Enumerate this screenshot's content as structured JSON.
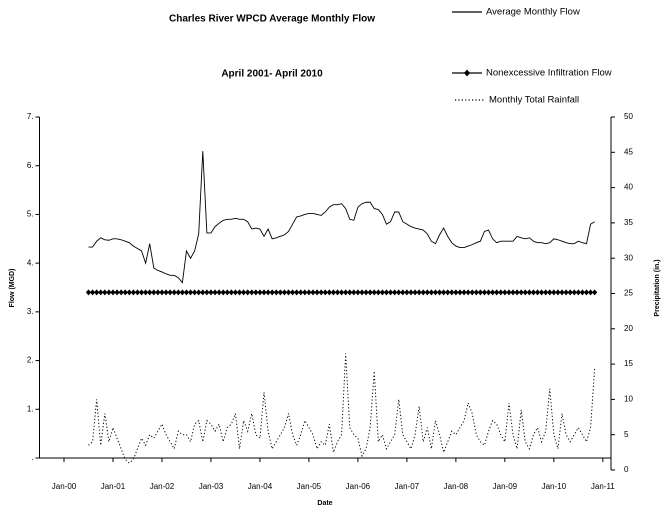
{
  "chart_data": {
    "type": "line",
    "title": "Charles River WPCD Average Monthly Flow",
    "subtitle": "April 2001- April 2010",
    "x_label": "Date",
    "y_label": "Flow (MGD)",
    "y2_label": "Precipitation (in.)",
    "x": [
      "2000-07",
      "2000-08",
      "2000-09",
      "2000-10",
      "2000-11",
      "2000-12",
      "2001-01",
      "2001-02",
      "2001-03",
      "2001-04",
      "2001-05",
      "2001-06",
      "2001-07",
      "2001-08",
      "2001-09",
      "2001-10",
      "2001-11",
      "2001-12",
      "2002-01",
      "2002-02",
      "2002-03",
      "2002-04",
      "2002-05",
      "2002-06",
      "2002-07",
      "2002-08",
      "2002-09",
      "2002-10",
      "2002-11",
      "2002-12",
      "2003-01",
      "2003-02",
      "2003-03",
      "2003-04",
      "2003-05",
      "2003-06",
      "2003-07",
      "2003-08",
      "2003-09",
      "2003-10",
      "2003-11",
      "2003-12",
      "2004-01",
      "2004-02",
      "2004-03",
      "2004-04",
      "2004-05",
      "2004-06",
      "2004-07",
      "2004-08",
      "2004-09",
      "2004-10",
      "2004-11",
      "2004-12",
      "2005-01",
      "2005-02",
      "2005-03",
      "2005-04",
      "2005-05",
      "2005-06",
      "2005-07",
      "2005-08",
      "2005-09",
      "2005-10",
      "2005-11",
      "2005-12",
      "2006-01",
      "2006-02",
      "2006-03",
      "2006-04",
      "2006-05",
      "2006-06",
      "2006-07",
      "2006-08",
      "2006-09",
      "2006-10",
      "2006-11",
      "2006-12",
      "2007-01",
      "2007-02",
      "2007-03",
      "2007-04",
      "2007-05",
      "2007-06",
      "2007-07",
      "2007-08",
      "2007-09",
      "2007-10",
      "2007-11",
      "2007-12",
      "2008-01",
      "2008-02",
      "2008-03",
      "2008-04",
      "2008-05",
      "2008-06",
      "2008-07",
      "2008-08",
      "2008-09",
      "2008-10",
      "2008-11",
      "2008-12",
      "2009-01",
      "2009-02",
      "2009-03",
      "2009-04",
      "2009-05",
      "2009-06",
      "2009-07",
      "2009-08",
      "2009-09",
      "2009-10",
      "2009-11",
      "2009-12",
      "2010-01",
      "2010-02",
      "2010-03",
      "2010-04",
      "2010-05",
      "2010-06",
      "2010-07",
      "2010-08",
      "2010-09",
      "2010-10",
      "2010-11"
    ],
    "series": [
      {
        "name": "Average Monthly Flow",
        "color": "#000000",
        "style": "solid",
        "values": [
          4.33,
          4.33,
          4.45,
          4.52,
          4.48,
          4.47,
          4.5,
          4.5,
          4.48,
          4.45,
          4.42,
          4.35,
          4.3,
          4.25,
          4.0,
          4.4,
          3.9,
          3.85,
          3.82,
          3.78,
          3.75,
          3.75,
          3.7,
          3.6,
          4.25,
          4.1,
          4.25,
          4.6,
          6.3,
          4.62,
          4.62,
          4.75,
          4.82,
          4.88,
          4.9,
          4.9,
          4.92,
          4.9,
          4.9,
          4.85,
          4.7,
          4.72,
          4.7,
          4.55,
          4.7,
          4.5,
          4.52,
          4.55,
          4.58,
          4.65,
          4.8,
          4.95,
          4.97,
          5.0,
          5.02,
          5.02,
          5.0,
          4.98,
          5.05,
          5.15,
          5.2,
          5.2,
          5.22,
          5.12,
          4.9,
          4.88,
          5.15,
          5.22,
          5.25,
          5.25,
          5.12,
          5.1,
          5.0,
          4.8,
          4.85,
          5.05,
          5.05,
          4.85,
          4.8,
          4.75,
          4.72,
          4.7,
          4.68,
          4.6,
          4.45,
          4.4,
          4.58,
          4.72,
          4.55,
          4.42,
          4.35,
          4.32,
          4.32,
          4.35,
          4.38,
          4.42,
          4.45,
          4.65,
          4.68,
          4.5,
          4.42,
          4.45,
          4.45,
          4.45,
          4.45,
          4.55,
          4.52,
          4.5,
          4.52,
          4.45,
          4.42,
          4.42,
          4.4,
          4.42,
          4.5,
          4.48,
          4.45,
          4.42,
          4.4,
          4.4,
          4.45,
          4.42,
          4.4,
          4.8,
          4.85
        ]
      },
      {
        "name": "Nonexcessive Infiltration Flow",
        "color": "#000000",
        "style": "solid",
        "marker": "diamond",
        "values": [
          3.4,
          3.4,
          3.4,
          3.4,
          3.4,
          3.4,
          3.4,
          3.4,
          3.4,
          3.4,
          3.4,
          3.4,
          3.4,
          3.4,
          3.4,
          3.4,
          3.4,
          3.4,
          3.4,
          3.4,
          3.4,
          3.4,
          3.4,
          3.4,
          3.4,
          3.4,
          3.4,
          3.4,
          3.4,
          3.4,
          3.4,
          3.4,
          3.4,
          3.4,
          3.4,
          3.4,
          3.4,
          3.4,
          3.4,
          3.4,
          3.4,
          3.4,
          3.4,
          3.4,
          3.4,
          3.4,
          3.4,
          3.4,
          3.4,
          3.4,
          3.4,
          3.4,
          3.4,
          3.4,
          3.4,
          3.4,
          3.4,
          3.4,
          3.4,
          3.4,
          3.4,
          3.4,
          3.4,
          3.4,
          3.4,
          3.4,
          3.4,
          3.4,
          3.4,
          3.4,
          3.4,
          3.4,
          3.4,
          3.4,
          3.4,
          3.4,
          3.4,
          3.4,
          3.4,
          3.4,
          3.4,
          3.4,
          3.4,
          3.4,
          3.4,
          3.4,
          3.4,
          3.4,
          3.4,
          3.4,
          3.4,
          3.4,
          3.4,
          3.4,
          3.4,
          3.4,
          3.4,
          3.4,
          3.4,
          3.4,
          3.4,
          3.4,
          3.4,
          3.4,
          3.4,
          3.4,
          3.4,
          3.4,
          3.4,
          3.4,
          3.4,
          3.4,
          3.4,
          3.4,
          3.4,
          3.4,
          3.4,
          3.4,
          3.4,
          3.4,
          3.4,
          3.4,
          3.4,
          3.4,
          3.4
        ]
      },
      {
        "name": "Monthly Total Rainfall",
        "color": "#000000",
        "style": "dotted",
        "axis": "y2",
        "values": [
          3.5,
          4,
          10,
          3.5,
          8,
          4,
          6,
          4.5,
          3,
          1.5,
          1,
          1.5,
          3,
          4.5,
          3.5,
          5,
          4.5,
          5.5,
          6.5,
          5,
          4,
          3,
          5.5,
          5,
          5,
          4,
          6.5,
          7,
          4,
          7,
          6.5,
          5.5,
          6.5,
          4,
          6,
          6.5,
          8,
          3,
          7,
          5.5,
          8,
          5,
          4.5,
          11,
          5.5,
          3,
          4,
          5,
          6,
          8,
          5,
          3.5,
          5,
          7,
          6,
          5,
          3,
          4,
          3.5,
          6.5,
          2.5,
          4,
          5,
          16.5,
          6,
          5,
          4.5,
          2,
          3,
          6,
          14,
          4,
          5,
          3,
          4,
          5,
          10,
          5,
          4,
          3,
          5,
          9,
          4,
          6,
          3,
          7,
          5,
          2.5,
          4,
          5.5,
          5,
          6,
          7,
          9.5,
          8,
          5,
          4,
          3.5,
          5.5,
          7,
          6.5,
          5,
          4,
          9.5,
          5,
          3,
          8.5,
          4,
          3,
          5,
          6,
          4,
          5.5,
          11.5,
          5,
          3,
          8,
          5,
          4,
          5,
          6,
          5,
          4,
          6,
          14.5
        ]
      }
    ],
    "xlim": [
      "1999-07",
      "2011-03"
    ],
    "xticks": [
      {
        "value": "2000-01",
        "label": "Jan-00"
      },
      {
        "value": "2001-01",
        "label": "Jan-01"
      },
      {
        "value": "2002-01",
        "label": "Jan-02"
      },
      {
        "value": "2003-01",
        "label": "Jan-03"
      },
      {
        "value": "2004-01",
        "label": "Jan-04"
      },
      {
        "value": "2005-01",
        "label": "Jan-05"
      },
      {
        "value": "2006-01",
        "label": "Jan-06"
      },
      {
        "value": "2007-01",
        "label": "Jan-07"
      },
      {
        "value": "2008-01",
        "label": "Jan-08"
      },
      {
        "value": "2009-01",
        "label": "Jan-09"
      },
      {
        "value": "2010-01",
        "label": "Jan-10"
      },
      {
        "value": "2011-01",
        "label": "Jan-11"
      }
    ],
    "ylim": [
      0,
      7
    ],
    "yticks": [
      {
        "value": 0,
        "label": "."
      },
      {
        "value": 1,
        "label": "1."
      },
      {
        "value": 2,
        "label": "2."
      },
      {
        "value": 3,
        "label": "3."
      },
      {
        "value": 4,
        "label": "4."
      },
      {
        "value": 5,
        "label": "5."
      },
      {
        "value": 6,
        "label": "6."
      },
      {
        "value": 7,
        "label": "7."
      }
    ],
    "y2lim": [
      0,
      50
    ],
    "y2ticks": [
      0,
      5,
      10,
      15,
      20,
      25,
      30,
      35,
      40,
      45,
      50
    ],
    "grid": false
  }
}
